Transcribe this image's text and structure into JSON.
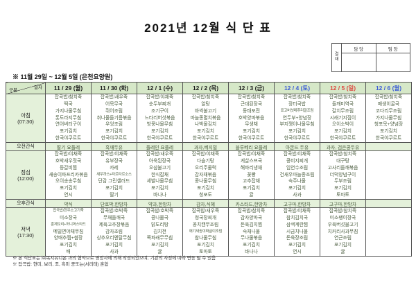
{
  "title": "2021년 12월 식 단 표",
  "subtitle": "※ 11월 29일 ~ 12월 5일 (은천요양원)",
  "approval": {
    "stamp_label_line1": "결",
    "stamp_label_line2": "재",
    "col1": "담 당",
    "col2": "팀 장"
  },
  "corner": {
    "top": "일자",
    "bottom": "구분"
  },
  "row_labels": {
    "breakfast": "아침",
    "breakfast_time": "(07:30)",
    "am_snack": "오전간식",
    "lunch": "점심",
    "lunch_time": "(12:00)",
    "pm_snack": "오후간식",
    "dinner": "저녁",
    "dinner_time": "(17:30)"
  },
  "colors": {
    "header_green": "#d6e8c8",
    "snack_green": "#e4f1da",
    "border": "#555555",
    "meal_text": "#4d5f42",
    "date_black": "#1a1a1a",
    "blue": "#3b5bd6",
    "red": "#dc4840"
  },
  "days": [
    {
      "date": "11 / 29 (월)",
      "color": "black",
      "breakfast": [
        "잡곡밥/참치죽",
        "떡국",
        "가지나물무침",
        "톳도라지무침",
        "연어버터구이",
        "포기김치",
        "한국야쿠르트"
      ],
      "am_snack": "딸기 요플레",
      "lunch": [
        "잡곡밥/야채죽",
        "호박새우젓국",
        "등갈비찜",
        "새송이파프리카볶음",
        "오이송송무침",
        "포기김치",
        "연시"
      ],
      "pm_snack": "약식",
      "dinner": [
        "잡곡밥/한우소고기죽",
        "미소장국",
        "훈제오리+허니머스타드",
        "메밀면야채무침",
        "양배추찜+쌈장",
        "포기김치",
        "배"
      ]
    },
    {
      "date": "11 / 30 (화)",
      "color": "black",
      "breakfast": [
        "잡곡밥/새우죽",
        "어묵무국",
        "쥐어조림",
        "취나물들기름볶음",
        "우엉조림",
        "포기김치",
        "한국야쿠르트"
      ],
      "am_snack": "흑깨두유",
      "lunch": [
        "잡곡밥/야채죽",
        "유부장국",
        "카레",
        "새우까스+타르타르소스",
        "단감 그린샐러드",
        "포기김치",
        "딸기"
      ],
      "pm_snack": "단호박,한방차",
      "dinner": [
        "잡곡밥/호박죽",
        "무채들깨국",
        "제육고추장볶음",
        "감자조림",
        "상추오리엔탈무침",
        "포기김치",
        "사과"
      ]
    },
    {
      "date": "12 / 1 (수)",
      "color": "black",
      "breakfast": [
        "잡곡밥/야채죽",
        "순두부찌개",
        "조기구이",
        "느타리버섯볶음",
        "방풍나물무침",
        "포기김치",
        "한국야쿠르트"
      ],
      "am_snack": "플레인 요플레",
      "lunch": [
        "잡곡밥/새우죽",
        "아욱된장국",
        "오삼불고기",
        "한식잡채",
        "세발나물무침",
        "포기김치",
        "바나나"
      ],
      "pm_snack": "약과,한방차",
      "dinner": [
        "잡곡밥/호박죽",
        "콩나물국",
        "닭도리탕",
        "김치전",
        "쪽파래무무침",
        "포기김치",
        "귤"
      ]
    },
    {
      "date": "12 / 2 (목)",
      "color": "black",
      "breakfast": [
        "잡곡밥/참치죽",
        "알탕",
        "바싹불고기",
        "마늘종멸치볶음",
        "나박물김치",
        "포기김치",
        "한국야쿠르트"
      ],
      "am_snack": "과자,베지밀",
      "lunch": [
        "잡곡밥/야채죽",
        "다슬기탕",
        "오리주물럭",
        "감자채볶음",
        "콩나물무침",
        "포기김치",
        "청포도"
      ],
      "pm_snack": "감자,식혜",
      "dinner": [
        "잡곡밥/새우죽",
        "청국장찌개",
        "꽁치캔무조림",
        "애기새송이짜글이조림",
        "참나물무침",
        "포기김치",
        "토마토"
      ]
    },
    {
      "date": "12 / 3 (금)",
      "color": "black",
      "breakfast": [
        "잡곡밥/참치죽",
        "근대된장국",
        "동태포전",
        "호박양파볶음",
        "무생채",
        "포기김치",
        "한국야쿠르트"
      ],
      "am_snack": "블루베리 요플레",
      "lunch": [
        "잡곡밥/야채죽",
        "게살스프국",
        "해파리냉채",
        "꽃빵",
        "고추잡채",
        "포기김치",
        "귤"
      ],
      "pm_snack": "카스타드,한방차",
      "dinner": [
        "잡곡밥/참치죽",
        "감자양파국",
        "돈육김치찜",
        "숙채나물",
        "무나물볶음",
        "포기김치",
        "바나나"
      ]
    },
    {
      "date": "12 / 4 (토)",
      "color": "blue",
      "breakfast": [
        "잡곡밥/참치죽",
        "장터국밥",
        "표고버섯메추리알조림",
        "연두부+양념장",
        "부지깽이나물무침",
        "포기김치",
        "한국야쿠르트"
      ],
      "am_snack": "아몬드 두유",
      "lunch": [
        "잡곡밥/야채죽",
        "콩비지찌개",
        "임연수조림",
        "건새우마늘종조림",
        "숙주나물",
        "포기김치",
        "사과"
      ],
      "pm_snack": "고구마,한방차",
      "dinner": [
        "잡곡밥/야채죽",
        "참치김치국",
        "삼색계란찜",
        "시금치나물",
        "돈육장조림",
        "포기김치",
        "연시"
      ]
    },
    {
      "date": "12 / 5 (일)",
      "color": "red",
      "breakfast": [
        "잡곡밥/참치죽",
        "들깨미역국",
        "갈치무조림",
        "시래기지짐이",
        "오이소박이",
        "포기김치",
        "한국야쿠르트"
      ],
      "am_snack": "과자, 검은콩두유",
      "lunch": [
        "잡곡밥/참치죽",
        "대구탕",
        "고사리들깨볶음",
        "더덕양념구이",
        "두부조림",
        "포기김치",
        "토마토"
      ],
      "pm_snack": "고구마,한방차",
      "dinner": [
        "잡곡밥/참치죽",
        "미소팽이장국",
        "우육버섯불고기",
        "치커리사과무침",
        "연근조림",
        "포기김치",
        "귤"
      ]
    },
    {
      "date": "12 / 6 (월)",
      "color": "blue",
      "breakfast": [
        "잡곡밥/참치죽",
        "매생이굴국",
        "코다리무조림",
        "가지나물무침",
        "청포묵+양념장",
        "포기김치",
        "한국야쿠르트"
      ],
      "am_snack": "",
      "lunch": [],
      "pm_snack": "",
      "dinner": []
    }
  ],
  "footnotes": [
    "※ 본 식단표는 ㈜복지유니온 과의 협약으로 영양사에 의해 작성되었으며, 기관의 사정에 따라 변동 될 수 있음",
    "※ 잡곡밥: 현미, 보리, 조, 흑미 콩또는(서리태) 혼합"
  ]
}
